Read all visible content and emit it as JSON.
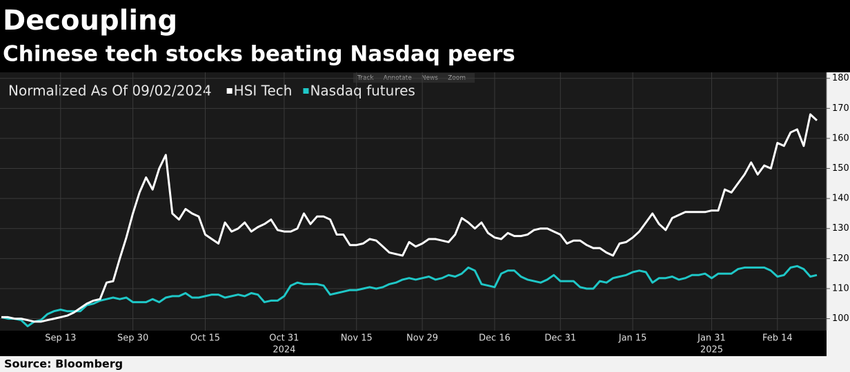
{
  "chart_data": {
    "type": "line",
    "title": "Decoupling",
    "subtitle": "Chinese tech stocks beating Nasdaq peers",
    "legend_title": "Normalized As Of 09/02/2024",
    "toolbar": [
      "Track",
      "Annotate",
      "News",
      "Zoom"
    ],
    "source": "Source: Bloomberg",
    "categories": [
      null,
      null,
      null,
      null,
      null,
      null,
      null,
      null,
      null,
      "Sep 13",
      null,
      null,
      null,
      null,
      null,
      null,
      null,
      null,
      null,
      null,
      "Sep 30",
      null,
      null,
      null,
      null,
      null,
      null,
      null,
      null,
      null,
      null,
      "Oct 15",
      null,
      null,
      null,
      null,
      null,
      null,
      null,
      null,
      null,
      null,
      null,
      "Oct 31",
      null,
      null,
      null,
      null,
      null,
      null,
      null,
      null,
      null,
      null,
      "Nov 15",
      null,
      null,
      null,
      null,
      null,
      null,
      null,
      null,
      null,
      "Nov 29",
      null,
      null,
      null,
      null,
      null,
      null,
      null,
      null,
      null,
      null,
      "Dec 16",
      null,
      null,
      null,
      null,
      null,
      null,
      null,
      null,
      null,
      "Dec 31",
      null,
      null,
      null,
      null,
      null,
      null,
      null,
      null,
      null,
      null,
      "Jan 15",
      null,
      null,
      null,
      null,
      null,
      null,
      null,
      null,
      null,
      null,
      null,
      "Jan 31",
      null,
      null,
      null,
      null,
      null,
      null,
      null,
      null,
      null,
      "Feb 14",
      null,
      null,
      null,
      null,
      null,
      null
    ],
    "years": [
      {
        "label": "2024",
        "under": "Oct 31"
      },
      {
        "label": "2025",
        "under": "Jan 31"
      }
    ],
    "series": [
      {
        "name": "HSI Tech",
        "color": "#ffffff",
        "values": [
          100.5,
          100.5,
          100,
          100,
          99.5,
          99,
          99,
          99.5,
          100,
          100.5,
          101,
          102,
          103.5,
          105,
          106,
          106.5,
          112,
          112.5,
          120,
          127,
          135,
          142,
          147,
          143,
          150,
          154.5,
          135,
          133,
          136.5,
          135,
          134,
          128,
          126.5,
          125,
          132,
          129,
          130,
          132,
          129,
          130.5,
          131.5,
          133,
          129.5,
          129,
          129,
          130,
          135,
          131.5,
          134,
          134,
          133,
          128,
          128,
          124.5,
          124.5,
          125,
          126.5,
          126,
          124,
          122,
          121.5,
          121,
          125.5,
          124,
          125,
          126.5,
          126.5,
          126,
          125.5,
          128,
          133.5,
          132,
          130,
          132,
          128.5,
          127,
          126.5,
          128.5,
          127.5,
          127.5,
          128,
          129.5,
          130,
          130,
          129,
          128,
          125,
          126,
          126,
          124.5,
          123.5,
          123.5,
          122,
          121,
          125,
          125.5,
          127,
          129,
          132,
          135,
          131.5,
          129.5,
          133.5,
          134.5,
          135.5,
          135.5,
          135.5,
          135.5,
          136,
          136,
          143,
          142,
          145,
          148,
          152,
          148,
          151,
          150,
          158.5,
          157.5,
          162,
          163,
          157.5,
          168,
          166
        ]
      },
      {
        "name": "Nasdaq futures",
        "color": "#1fc7c7",
        "values": [
          100.5,
          100,
          100,
          99.5,
          97.5,
          99,
          99.5,
          101.5,
          102.5,
          103,
          102.5,
          102.5,
          102.5,
          104.5,
          105,
          106,
          106.5,
          107,
          106.5,
          107,
          105.5,
          105.5,
          105.5,
          106.5,
          105.5,
          107,
          107.5,
          107.5,
          108.5,
          107,
          107,
          107.5,
          108,
          108,
          107,
          107.5,
          108,
          107.5,
          108.5,
          108,
          105.5,
          106,
          106,
          107.5,
          111,
          112,
          111.5,
          111.5,
          111.5,
          111,
          108,
          108.5,
          109,
          109.5,
          109.5,
          110,
          110.5,
          110,
          110.5,
          111.5,
          112,
          113,
          113.5,
          113,
          113.5,
          114,
          113,
          113.5,
          114.5,
          114,
          115,
          117,
          116,
          111.5,
          111,
          110.5,
          115,
          116,
          116,
          114,
          113,
          112.5,
          112,
          113,
          114.5,
          112.5,
          112.5,
          112.5,
          110.5,
          110,
          110,
          112.5,
          112,
          113.5,
          114,
          114.5,
          115.5,
          116,
          115.5,
          112,
          113.5,
          113.5,
          114,
          113,
          113.5,
          114.5,
          114.5,
          115,
          113.5,
          115,
          115,
          115,
          116.5,
          117,
          117,
          117,
          117,
          116,
          114,
          114.5,
          117,
          117.5,
          116.5,
          114,
          114.5
        ]
      }
    ],
    "ylim": [
      96,
      182
    ],
    "yticks": [
      100,
      110,
      120,
      130,
      140,
      150,
      160,
      170,
      180
    ],
    "grid": true
  }
}
